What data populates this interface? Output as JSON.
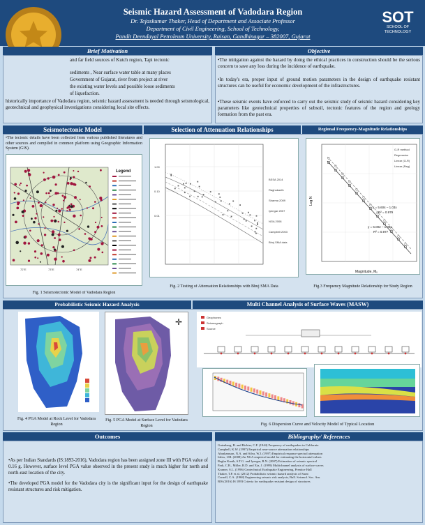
{
  "header": {
    "title": "Seismic Hazard Assessment of Vadodara Region",
    "author": "Dr. Tejaskumar Thaker, Head of Department and Associate Professor",
    "dept": "Department of Civil Engineering, School of Technology,",
    "univ": "Pandit Deendayal Petroleum University, Raisan, Gandhinagar – 382007, Gujarat"
  },
  "logo": {
    "big": "SOT",
    "small1": "SCHOOL OF",
    "small2": "TECHNOLOGY"
  },
  "motivation": {
    "title": "Brief Motivation",
    "p1": "and far field sources of Kutch region, Tapi tectonic",
    "p2": "sediments , Near surface water table at many places",
    "p3": "Government of Gujarat, river from project at river",
    "p4": "the existing water levels and possible loose sediments",
    "p5": "of liquefaction.",
    "p6": "historically importance of Vadodara region, seismic hazard assessment is needed through seismological, geotechnical and geophysical investigations considering local site effects."
  },
  "objective": {
    "title": "Objective",
    "p1": "•The mitigation against the hazard by doing the ethical practices in construction should be the serious concern to save any loss during the incidence of earthquake.",
    "p2": "•In today's era, proper input of ground motion parameters in the design of earthquake resistant structures can be useful for economic development of the infrastructures.",
    "p3": "•These seismic events have enforced to carry out the seismic study of seismic hazard considering key parameters like geotechnical properties of subsoil, tectonic features of the region and geology formation from the past era."
  },
  "sections": {
    "seismo": "Seismotectonic Model",
    "atten": "Selection of Attenuation Relationships",
    "freq": "Regional Frequency-Magnitude Relationships",
    "psha": "Probabilistic Seismic Hazard Analysis",
    "masw": "Multi Channel Analysis of Surface Waves (MASW)",
    "outcomes": "Outcomes",
    "biblio": "Bibliography/ References"
  },
  "seismo_text": "•The tectonic details have been collected from various published literatures and other sources and compiled in common platform using Geographic Information System (GIS).",
  "legend_title": "Legend",
  "captions": {
    "fig1": "Fig. 1 Seismotectonic Model of Vadodara Region",
    "fig2": "Fig. 2 Testing of Attenuation Relationships with Bhuj SMA Data",
    "fig3": "Fig.3 Frequency Magnitude Relationship for Study Region",
    "fig4": "Fig. 4 PGA Model at Rock Level for Vadodara Region",
    "fig5": "Fig. 5 PGA Model at Surface Level for Vadodara Region",
    "fig6": "Fig. 6 Dispersion Curve and Velocity Model of Typical Location"
  },
  "fig3": {
    "eq1": "y = 5.604 – 1.03x",
    "r1": "R² = 0.979",
    "eq2": "y = 6.002 – 1.08x",
    "r2": "R² = 0.977",
    "xlabel": "Magnitude, Mᵥ",
    "ylabel": "Log N"
  },
  "outcomes": {
    "p1": "•As per Indian Standards (IS:1893-2016), Vadodara region has been assigned zone III with PGA value of 0.16 g. However, surface level PGA value observed in the present study is much higher for north and north-east location of the city.",
    "p2": "•The developed PGA model for the Vadodara city is the significant input for the design of earthquake resistant structures and risk mitigation."
  },
  "biblio_lines": [
    "Gutenberg, B. and Richter, C.F. (1944) Frequency of earthquakes in California",
    "Campbell, K.W. (1997) Empirical near-source attenuation relationships",
    "Abrahamson, N.A. and Silva, W.J. (1997) Empirical response spectral attenuation",
    "Idriss, I.M. (2008) An NGA empirical model for estimating the horizontal values",
    "Raghu Kanth, S.T.G. and Iyengar, R.N. (2007) Estimation of seismic spectral",
    "Park, C.B., Miller, R.D. and Xia, J. (1999) Multichannel analysis of surface waves",
    "Kramer, S.L. (1996) Geotechnical Earthquake Engineering, Prentice Hall",
    "Thaker, T.P. et al. (2012) Probabilistic seismic hazard analysis of Surat",
    "Cornell, C.A. (1968) Engineering seismic risk analysis, Bull. Seismol. Soc. Am.",
    "BIS (2016) IS 1893 Criteria for earthquake resistant design of structures"
  ]
}
